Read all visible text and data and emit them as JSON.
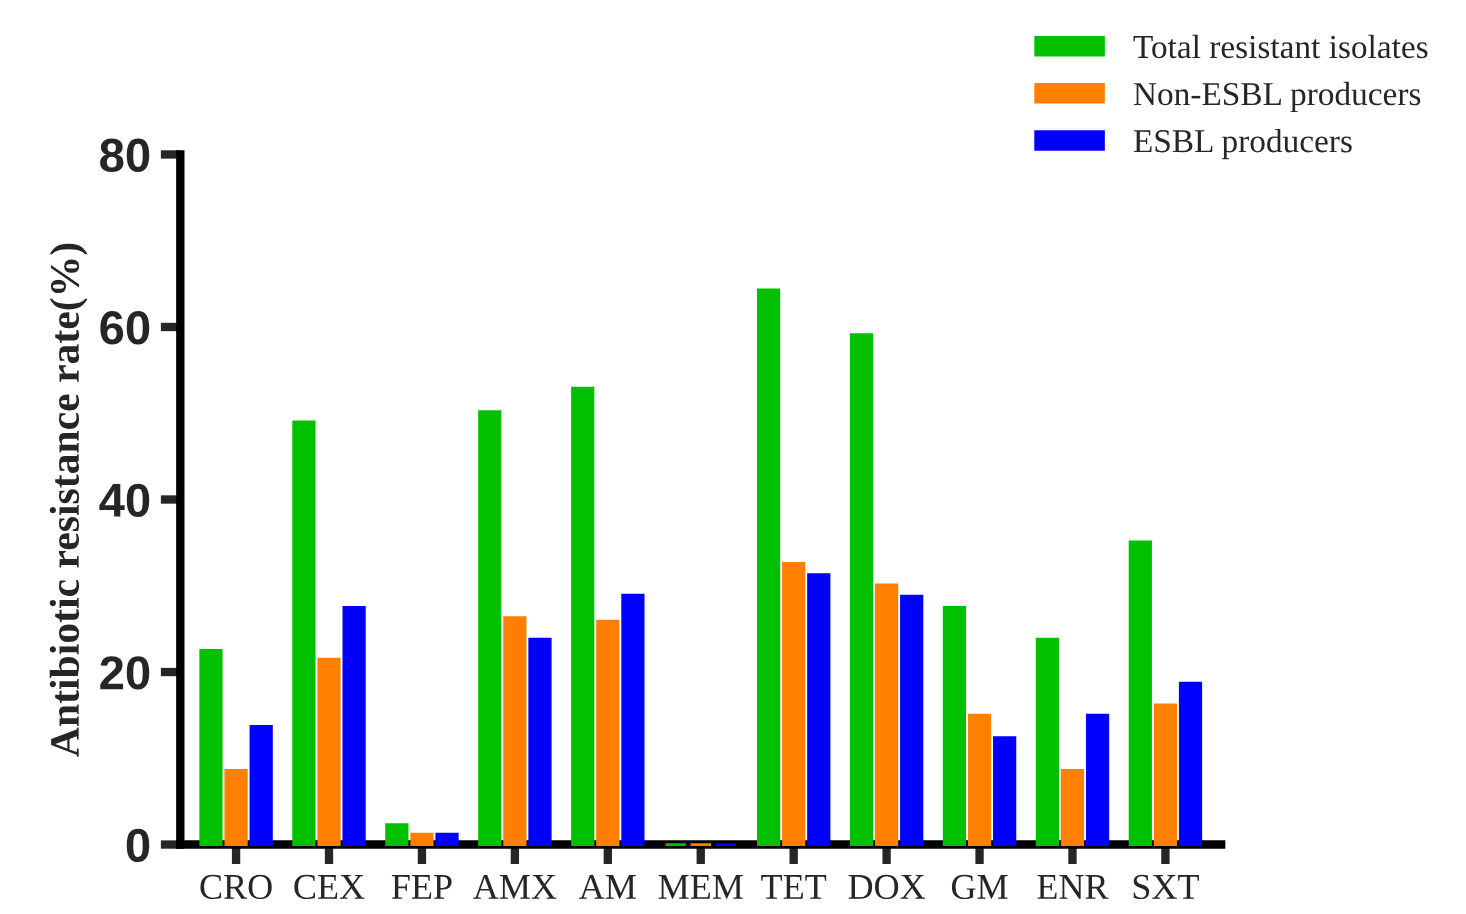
{
  "chart_data": {
    "type": "bar",
    "ylabel": "Antibiotic resistance rate(%)",
    "categories": [
      "CRO",
      "CEX",
      "FEP",
      "AMX",
      "AM",
      "MEM",
      "TET",
      "DOX",
      "GM",
      "ENR",
      "SXT"
    ],
    "series": [
      {
        "name": "Total resistant isolates",
        "color": "#00c000",
        "values": [
          22.5,
          49.0,
          2.3,
          50.2,
          52.9,
          0,
          64.3,
          59.1,
          27.5,
          23.8,
          35.1
        ]
      },
      {
        "name": "Non-ESBL producers",
        "color": "#ff8000",
        "values": [
          8.6,
          21.5,
          1.2,
          26.3,
          25.9,
          0,
          32.6,
          30.1,
          15.0,
          8.6,
          16.2
        ]
      },
      {
        "name": "ESBL producers",
        "color": "#0000ff",
        "values": [
          13.7,
          27.5,
          1.2,
          23.8,
          28.9,
          0,
          31.3,
          28.8,
          12.4,
          15.0,
          18.7
        ]
      }
    ],
    "ylim": [
      0,
      80
    ],
    "yticks": [
      0,
      20,
      40,
      60,
      80
    ],
    "grid": false,
    "legend": "top right"
  }
}
